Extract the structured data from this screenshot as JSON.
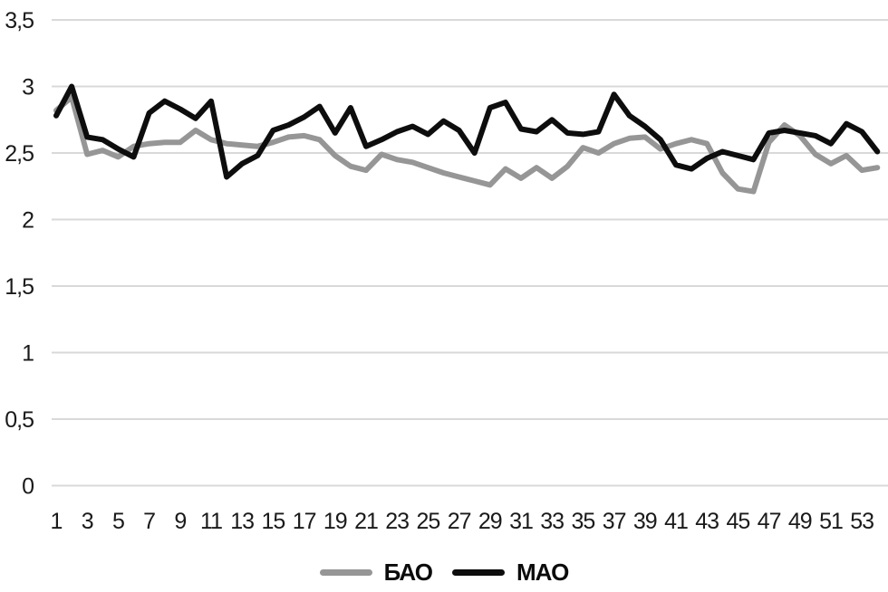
{
  "chart_data": {
    "type": "line",
    "x": [
      1,
      2,
      3,
      4,
      5,
      6,
      7,
      8,
      9,
      10,
      11,
      12,
      13,
      14,
      15,
      16,
      17,
      18,
      19,
      20,
      21,
      22,
      23,
      24,
      25,
      26,
      27,
      28,
      29,
      30,
      31,
      32,
      33,
      34,
      35,
      36,
      37,
      38,
      39,
      40,
      41,
      42,
      43,
      44,
      45,
      46,
      47,
      48,
      49,
      50,
      51,
      52,
      53,
      54
    ],
    "xtick_labels": [
      "1",
      "3",
      "5",
      "7",
      "9",
      "11",
      "13",
      "15",
      "17",
      "19",
      "21",
      "23",
      "25",
      "27",
      "29",
      "31",
      "33",
      "35",
      "37",
      "39",
      "41",
      "43",
      "45",
      "47",
      "49",
      "51",
      "53"
    ],
    "ytick_labels": [
      "0",
      "0,5",
      "1",
      "1,5",
      "2",
      "2,5",
      "3",
      "3,5"
    ],
    "ytick_values": [
      0,
      0.5,
      1,
      1.5,
      2,
      2.5,
      3,
      3.5
    ],
    "ylim": [
      0,
      3.5
    ],
    "grid": "horizontal",
    "gridline_color": "#d9d9d9",
    "legend_position": "bottom",
    "title": "",
    "xlabel": "",
    "ylabel": "",
    "series": [
      {
        "name": "БАО",
        "color": "#969696",
        "values": [
          2.82,
          2.92,
          2.49,
          2.52,
          2.47,
          2.55,
          2.57,
          2.58,
          2.58,
          2.67,
          2.6,
          2.57,
          2.56,
          2.55,
          2.58,
          2.62,
          2.63,
          2.6,
          2.48,
          2.4,
          2.37,
          2.49,
          2.45,
          2.43,
          2.39,
          2.35,
          2.32,
          2.29,
          2.26,
          2.38,
          2.31,
          2.39,
          2.31,
          2.4,
          2.54,
          2.5,
          2.57,
          2.61,
          2.62,
          2.53,
          2.57,
          2.6,
          2.57,
          2.35,
          2.23,
          2.21,
          2.58,
          2.71,
          2.63,
          2.49,
          2.42,
          2.48,
          2.37,
          2.39
        ]
      },
      {
        "name": "МАО",
        "color": "#0d0d0d",
        "values": [
          2.78,
          3.0,
          2.62,
          2.6,
          2.53,
          2.47,
          2.8,
          2.89,
          2.83,
          2.76,
          2.89,
          2.32,
          2.42,
          2.48,
          2.67,
          2.71,
          2.77,
          2.85,
          2.65,
          2.84,
          2.55,
          2.6,
          2.66,
          2.7,
          2.64,
          2.74,
          2.67,
          2.5,
          2.84,
          2.88,
          2.68,
          2.66,
          2.75,
          2.65,
          2.64,
          2.66,
          2.94,
          2.78,
          2.7,
          2.6,
          2.41,
          2.38,
          2.46,
          2.51,
          2.48,
          2.45,
          2.65,
          2.67,
          2.65,
          2.63,
          2.57,
          2.72,
          2.66,
          2.51
        ]
      }
    ]
  }
}
